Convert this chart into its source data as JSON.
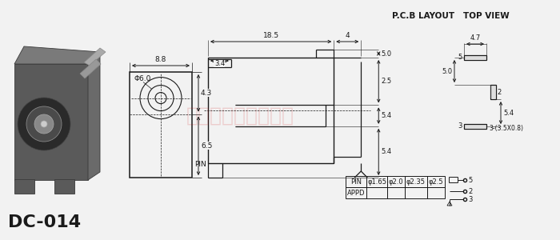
{
  "title": "DC-014",
  "bg_color": "#f2f2f2",
  "line_color": "#1a1a1a",
  "watermark_text": "东莞宏美电子零售部",
  "watermark_color": "#cc0000",
  "watermark_alpha": 0.15,
  "pcb_label": "P.C.B LAYOUT   TOP VIEW",
  "dim_color": "#1a1a1a",
  "table_rows": [
    [
      "PIN",
      "φ1.65",
      "φ2.0",
      "φ2.35",
      "φ2.5"
    ],
    [
      "APPD",
      "",
      "",
      "",
      ""
    ]
  ]
}
